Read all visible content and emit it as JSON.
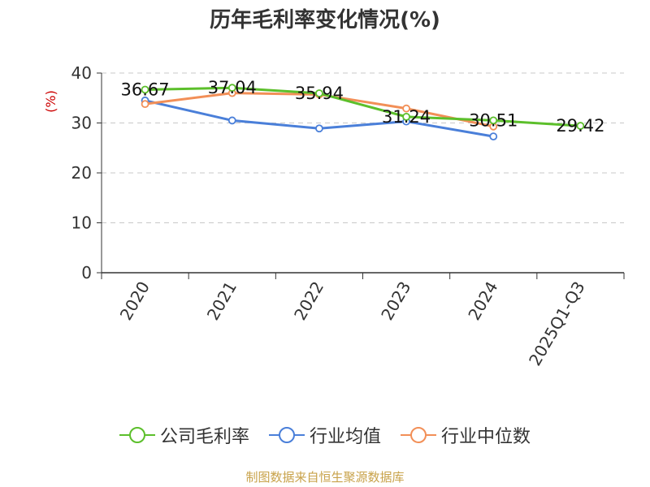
{
  "chart_data": {
    "type": "line",
    "title": "历年毛利率变化情况(%)",
    "ylabel": "(%)",
    "xlabel": "",
    "categories": [
      "2020",
      "2021",
      "2022",
      "2023",
      "2024",
      "2025Q1-Q3"
    ],
    "ylim": [
      0,
      40
    ],
    "yticks": [
      "0",
      "10",
      "20",
      "30",
      "40"
    ],
    "grid": true,
    "legend_position": "bottom",
    "series": [
      {
        "name": "公司毛利率",
        "color": "#5cbf2b",
        "values": [
          36.67,
          37.04,
          35.94,
          31.24,
          30.51,
          29.42
        ],
        "labels": [
          "36.67",
          "37.04",
          "35.94",
          "31.24",
          "30.51",
          "29.42"
        ]
      },
      {
        "name": "行业均值",
        "color": "#4a7fd9",
        "values": [
          34.5,
          30.5,
          28.9,
          30.3,
          27.3,
          null
        ]
      },
      {
        "name": "行业中位数",
        "color": "#f28f57",
        "values": [
          33.8,
          36.0,
          35.7,
          32.9,
          29.3,
          null
        ]
      }
    ]
  },
  "footer": "制图数据来自恒生聚源数据库"
}
